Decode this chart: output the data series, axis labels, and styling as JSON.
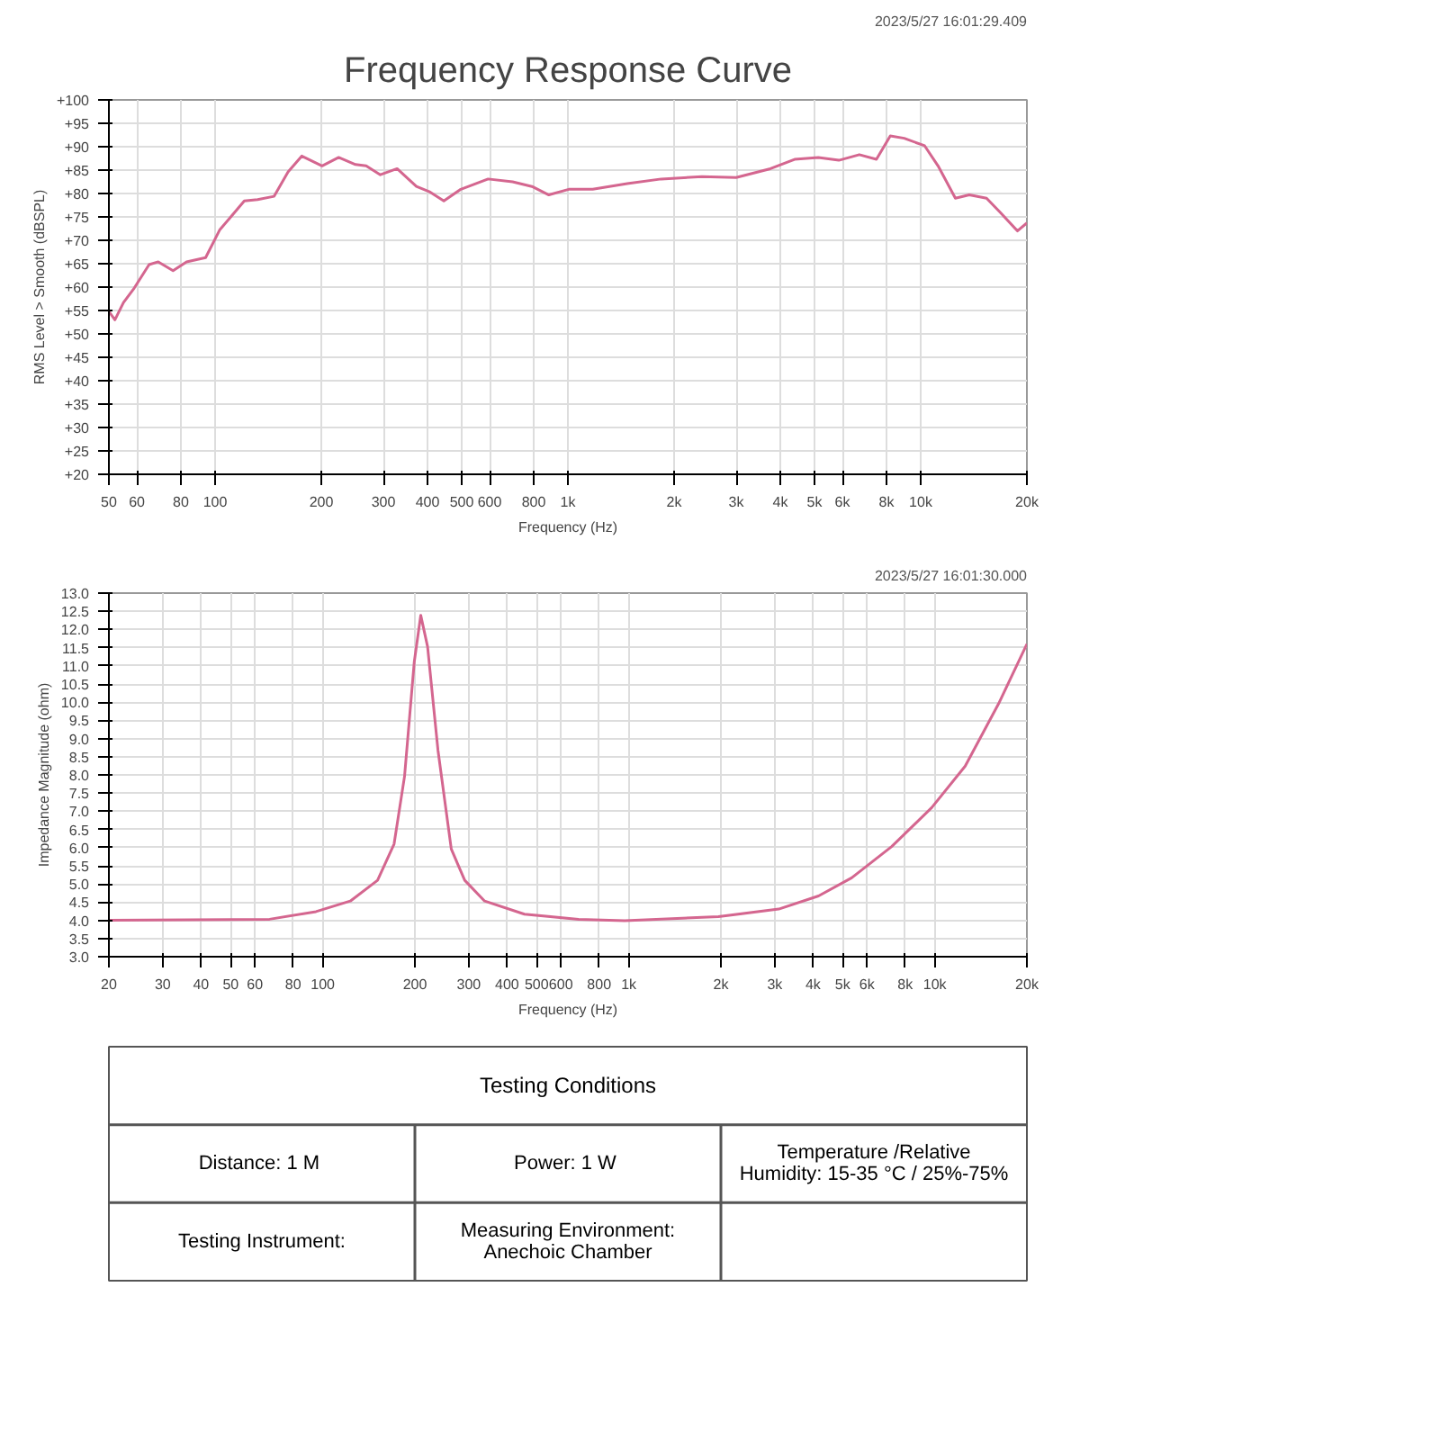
{
  "chart_data": [
    {
      "type": "line",
      "title": "Frequency Response Curve",
      "xlabel": "Frequency (Hz)",
      "ylabel": "RMS Level > Smooth (dBSPL)",
      "log": "x",
      "grid": true,
      "annotations": [
        "2023/5/27 16:01:29.409"
      ],
      "xlim": [
        50,
        20000
      ],
      "xticks": [
        50,
        60,
        80,
        100,
        200,
        300,
        400,
        500,
        600,
        800,
        {
          "value": 1000,
          "label": "1k"
        },
        {
          "value": 2000,
          "label": "2k"
        },
        {
          "value": 3000,
          "label": "3k"
        },
        {
          "value": 4000,
          "label": "4k"
        },
        {
          "value": 5000,
          "label": "5k"
        },
        {
          "value": 6000,
          "label": "6k"
        },
        {
          "value": 8000,
          "label": "8k"
        },
        {
          "value": 10000,
          "label": "10k"
        },
        {
          "value": 20000,
          "label": "20k"
        }
      ],
      "ylim": [
        20,
        100
      ],
      "yticks": [
        {
          "value": 20,
          "label": "+20"
        },
        {
          "value": 25,
          "label": "+25"
        },
        {
          "value": 30,
          "label": "+30"
        },
        {
          "value": 35,
          "label": "+35"
        },
        {
          "value": 40,
          "label": "+40"
        },
        {
          "value": 45,
          "label": "+45"
        },
        {
          "value": 50,
          "label": "+50"
        },
        {
          "value": 55,
          "label": "+55"
        },
        {
          "value": 60,
          "label": "+60"
        },
        {
          "value": 65,
          "label": "+65"
        },
        {
          "value": 70,
          "label": "+70"
        },
        {
          "value": 75,
          "label": "+75"
        },
        {
          "value": 80,
          "label": "+80"
        },
        {
          "value": 85,
          "label": "+85"
        },
        {
          "value": 90,
          "label": "+90"
        },
        {
          "value": 95,
          "label": "+95"
        },
        {
          "value": 100,
          "label": "+100"
        }
      ],
      "x": [
        50,
        52,
        55,
        59,
        65,
        69,
        76,
        83,
        94,
        103,
        121,
        132,
        147,
        161,
        176,
        201,
        224,
        250,
        268,
        294,
        328,
        372,
        407,
        445,
        497,
        594,
        697,
        791,
        883,
        1006,
        1176,
        1473,
        1838,
        2398,
        2998,
        3750,
        4390,
        5126,
        5862,
        6700,
        7490,
        8200,
        8980,
        10260,
        11200,
        12540,
        13730,
        15370,
        16830,
        18800,
        20000
      ],
      "series": [
        {
          "color": "#d4668f",
          "values": [
            54.8,
            53,
            56.7,
            59.8,
            64.8,
            65.4,
            63.5,
            65.4,
            66.3,
            72.2,
            78.4,
            78.7,
            79.4,
            84.6,
            88,
            85.9,
            87.7,
            86.2,
            85.9,
            84,
            85.3,
            81.5,
            80.3,
            78.4,
            80.9,
            83.1,
            82.5,
            81.5,
            79.7,
            80.9,
            80.9,
            82.1,
            83.1,
            83.6,
            83.4,
            85.3,
            87.3,
            87.7,
            87.1,
            88.3,
            87.3,
            92.3,
            91.8,
            90.2,
            85.9,
            79,
            79.7,
            79,
            75.9,
            72,
            73.7
          ]
        }
      ]
    },
    {
      "type": "line",
      "xlabel": "Frequency (Hz)",
      "ylabel": "Impedance Magnitude (ohm)",
      "log": "x",
      "grid": true,
      "annotations": [
        "2023/5/27 16:01:30.000"
      ],
      "xlim": [
        20,
        20000
      ],
      "xticks": [
        20,
        30,
        40,
        50,
        60,
        80,
        100,
        200,
        300,
        400,
        500,
        600,
        800,
        {
          "value": 1000,
          "label": "1k"
        },
        {
          "value": 2000,
          "label": "2k"
        },
        {
          "value": 3000,
          "label": "3k"
        },
        {
          "value": 4000,
          "label": "4k"
        },
        {
          "value": 5000,
          "label": "5k"
        },
        {
          "value": 6000,
          "label": "6k"
        },
        {
          "value": 8000,
          "label": "8k"
        },
        {
          "value": 10000,
          "label": "10k"
        },
        {
          "value": 20000,
          "label": "20k"
        }
      ],
      "ylim": [
        3,
        13
      ],
      "yticks": [
        {
          "value": 3,
          "label": "3.0"
        },
        3.5,
        {
          "value": 4,
          "label": "4.0"
        },
        4.5,
        {
          "value": 5,
          "label": "5.0"
        },
        5.5,
        {
          "value": 6,
          "label": "6.0"
        },
        6.5,
        {
          "value": 7,
          "label": "7.0"
        },
        7.5,
        {
          "value": 8,
          "label": "8.0"
        },
        8.5,
        {
          "value": 9,
          "label": "9.0"
        },
        9.5,
        {
          "value": 10,
          "label": "10.0"
        },
        10.5,
        {
          "value": 11,
          "label": "11.0"
        },
        11.5,
        {
          "value": 12,
          "label": "12.0"
        },
        12.5,
        {
          "value": 13,
          "label": "13.0"
        }
      ],
      "x": [
        20,
        67,
        95,
        123,
        151,
        171,
        185,
        199,
        209,
        220,
        238,
        263,
        291,
        338,
        456,
        685,
        970,
        1963,
        3090,
        4170,
        5350,
        7230,
        9770,
        12570,
        16170,
        20000
      ],
      "series": [
        {
          "color": "#d4668f",
          "values": [
            4.0,
            4.03,
            4.24,
            4.53,
            5.1,
            6.1,
            7.96,
            11.1,
            12.39,
            11.53,
            8.67,
            5.96,
            5.1,
            4.53,
            4.17,
            4.03,
            3.99,
            4.1,
            4.31,
            4.67,
            5.17,
            6.03,
            7.1,
            8.24,
            9.96,
            11.6
          ]
        }
      ]
    },
    {
      "type": "other",
      "title": "Testing Conditions",
      "annotations": [
        "Distance:  1 M",
        "Power:  1 W",
        "Temperature /Relative Humidity: 15-35 °C / 25%-75%",
        "Testing Instrument:",
        "Measuring Environment: Anechoic Chamber"
      ]
    }
  ]
}
